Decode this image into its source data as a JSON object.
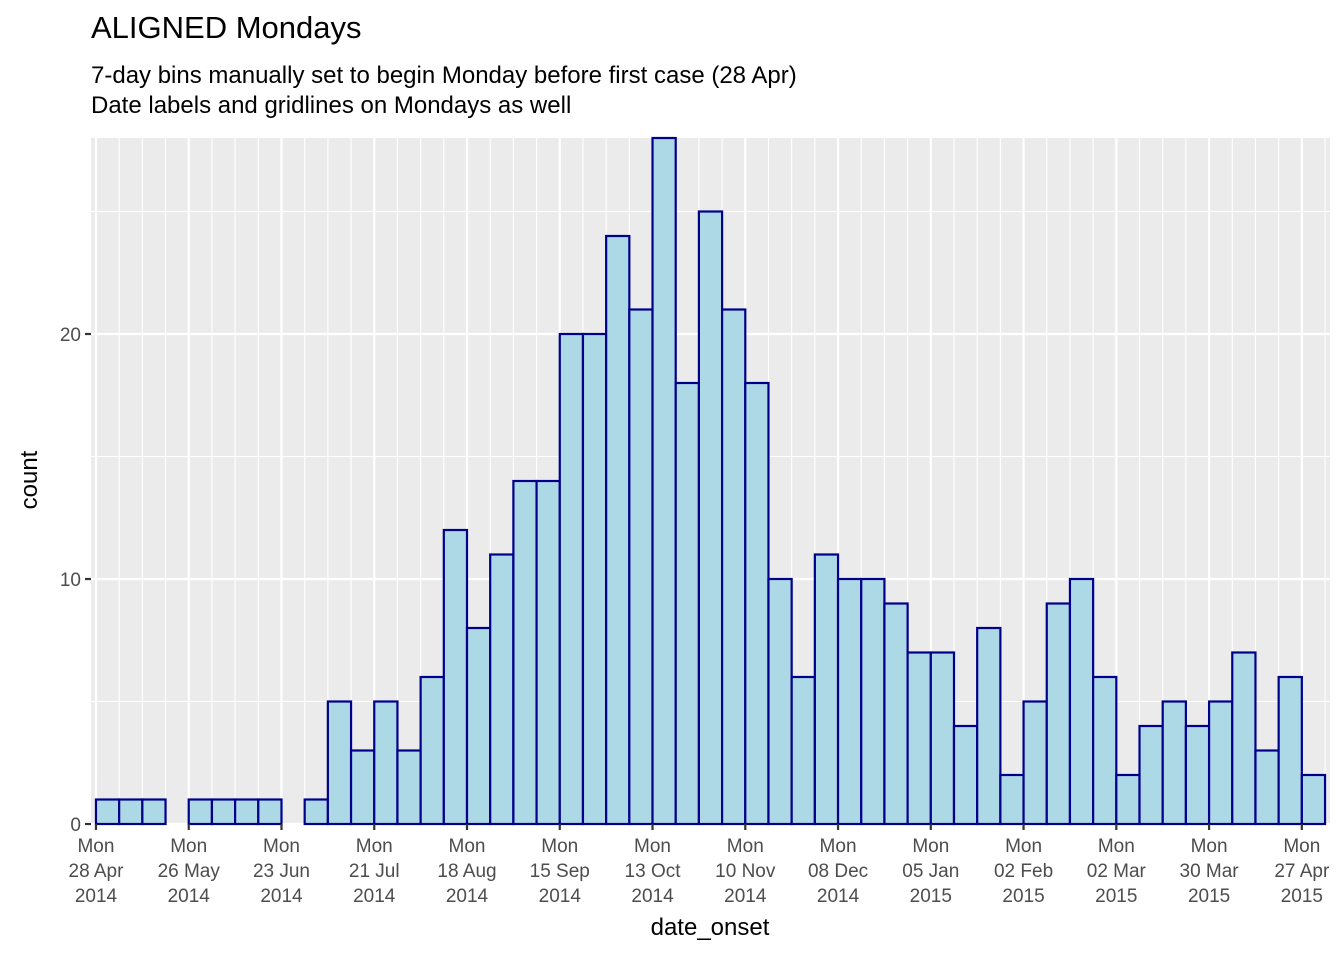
{
  "chart_data": {
    "type": "bar",
    "title": "ALIGNED Mondays",
    "subtitle": [
      "7-day bins manually set to begin Monday before first case (28 Apr)",
      "Date labels and gridlines on Mondays as well"
    ],
    "xlabel": "date_onset",
    "ylabel": "count",
    "bin_width_days": 7,
    "bins_start": "2014-04-28",
    "values": [
      1,
      1,
      1,
      0,
      1,
      1,
      1,
      1,
      0,
      1,
      5,
      3,
      5,
      3,
      6,
      12,
      8,
      11,
      14,
      14,
      20,
      20,
      24,
      21,
      28,
      18,
      25,
      21,
      18,
      10,
      6,
      11,
      10,
      10,
      9,
      7,
      7,
      4,
      8,
      2,
      5,
      9,
      10,
      6,
      2,
      4,
      5,
      4,
      5,
      7,
      3,
      6,
      2
    ],
    "ylim": [
      0,
      28
    ],
    "y_ticks": [
      0,
      10,
      20
    ],
    "x_ticks": [
      {
        "date": "2014-04-28",
        "label": [
          "Mon",
          "28 Apr",
          "2014"
        ]
      },
      {
        "date": "2014-05-26",
        "label": [
          "Mon",
          "26 May",
          "2014"
        ]
      },
      {
        "date": "2014-06-23",
        "label": [
          "Mon",
          "23 Jun",
          "2014"
        ]
      },
      {
        "date": "2014-07-21",
        "label": [
          "Mon",
          "21 Jul",
          "2014"
        ]
      },
      {
        "date": "2014-08-18",
        "label": [
          "Mon",
          "18 Aug",
          "2014"
        ]
      },
      {
        "date": "2014-09-15",
        "label": [
          "Mon",
          "15 Sep",
          "2014"
        ]
      },
      {
        "date": "2014-10-13",
        "label": [
          "Mon",
          "13 Oct",
          "2014"
        ]
      },
      {
        "date": "2014-11-10",
        "label": [
          "Mon",
          "10 Nov",
          "2014"
        ]
      },
      {
        "date": "2014-12-08",
        "label": [
          "Mon",
          "08 Dec",
          "2014"
        ]
      },
      {
        "date": "2015-01-05",
        "label": [
          "Mon",
          "05 Jan",
          "2015"
        ]
      },
      {
        "date": "2015-02-02",
        "label": [
          "Mon",
          "02 Feb",
          "2015"
        ]
      },
      {
        "date": "2015-03-02",
        "label": [
          "Mon",
          "02 Mar",
          "2015"
        ]
      },
      {
        "date": "2015-03-30",
        "label": [
          "Mon",
          "30 Mar",
          "2015"
        ]
      },
      {
        "date": "2015-04-27",
        "label": [
          "Mon",
          "27 Apr",
          "2015"
        ]
      }
    ],
    "grid": true,
    "colors": {
      "bar_fill": "#add8e6",
      "bar_stroke": "#00008b",
      "panel_background": "#ebebeb",
      "grid_major": "#ffffff"
    }
  }
}
